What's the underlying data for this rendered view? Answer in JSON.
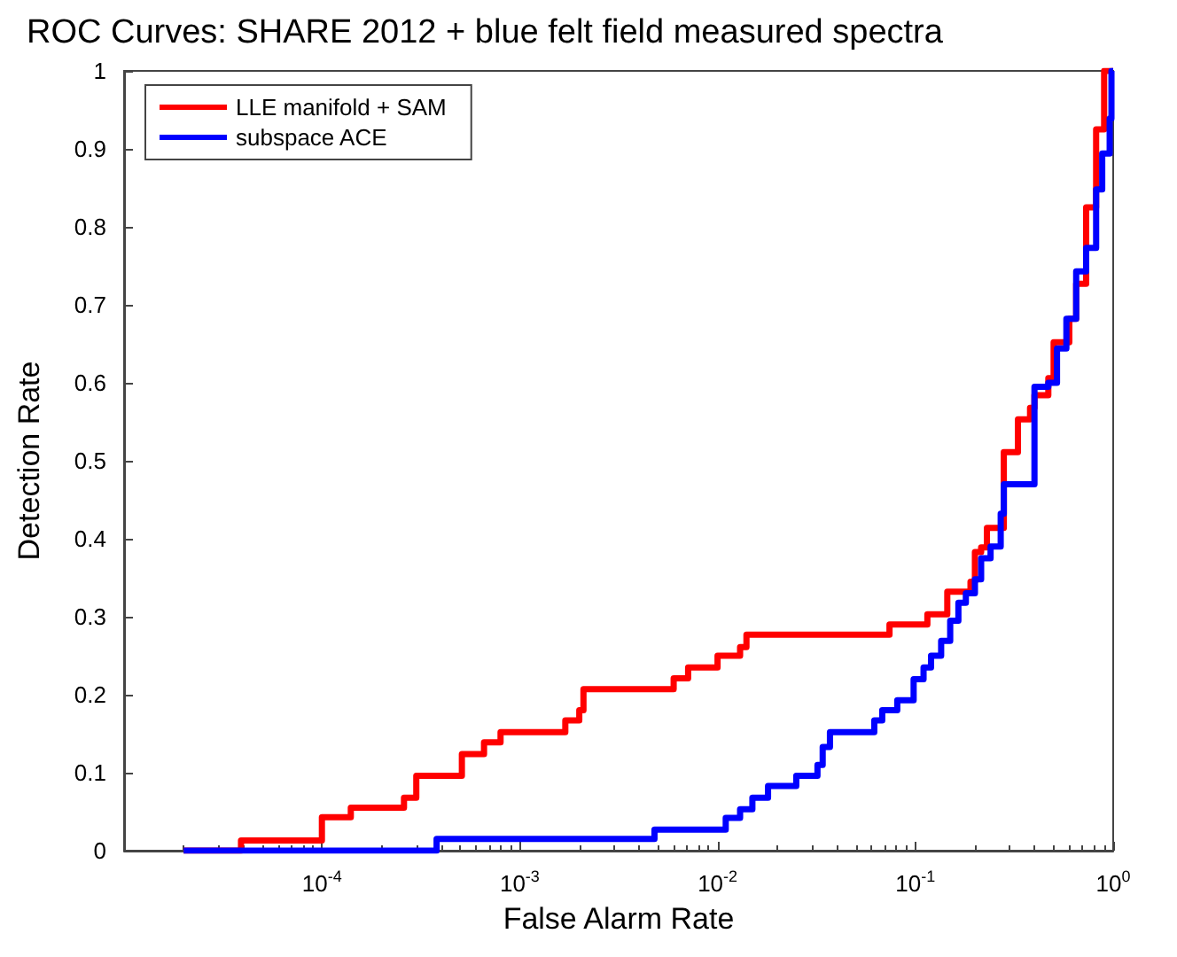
{
  "chart_data": {
    "type": "step",
    "title": "ROC Curves: SHARE 2012 + blue felt field measured spectra",
    "xlabel": "False Alarm Rate",
    "ylabel": "Detection Rate",
    "log": "x",
    "xlim": [
      1e-05,
      1
    ],
    "xticks": [
      {
        "value": 0.0001,
        "label": "10$^{-4}$"
      },
      {
        "value": 0.001,
        "label": "10$^{-3}$"
      },
      {
        "value": 0.01,
        "label": "10$^{-2}$"
      },
      {
        "value": 0.1,
        "label": "10$^{-1}$"
      },
      {
        "value": 1,
        "label": "10$^{0}$"
      }
    ],
    "ylim": [
      0,
      1
    ],
    "yticks": [
      0,
      0.1,
      0.2,
      0.3,
      0.4,
      0.5,
      0.6,
      0.7,
      0.8,
      0.9,
      1
    ],
    "grid": false,
    "legend": "top left",
    "line_style": "solid",
    "marker": "none",
    "series": [
      {
        "name": "LLE manifold + SAM",
        "color": "#ff0000",
        "x": [
          2e-05,
          3.9e-05,
          0.0001,
          0.00014,
          0.00026,
          0.0003,
          0.00051,
          0.00066,
          0.0008,
          0.0017,
          0.002,
          0.0021,
          0.006,
          0.0071,
          0.01,
          0.013,
          0.014,
          0.074,
          0.115,
          0.145,
          0.19,
          0.2,
          0.215,
          0.23,
          0.28,
          0.33,
          0.38,
          0.4,
          0.47,
          0.5,
          0.6,
          0.65,
          0.73,
          0.82,
          0.9,
          1
        ],
        "values": [
          0,
          0.013,
          0.043,
          0.055,
          0.068,
          0.096,
          0.124,
          0.139,
          0.152,
          0.167,
          0.18,
          0.207,
          0.221,
          0.235,
          0.25,
          0.261,
          0.277,
          0.29,
          0.303,
          0.332,
          0.345,
          0.383,
          0.389,
          0.414,
          0.511,
          0.553,
          0.568,
          0.584,
          0.606,
          0.652,
          0.682,
          0.727,
          0.825,
          0.925,
          1,
          1
        ]
      },
      {
        "name": "subspace ACE",
        "color": "#0000ff",
        "x": [
          2e-05,
          0.00038,
          0.0048,
          0.011,
          0.013,
          0.015,
          0.018,
          0.025,
          0.032,
          0.034,
          0.037,
          0.062,
          0.068,
          0.081,
          0.098,
          0.11,
          0.12,
          0.135,
          0.15,
          0.165,
          0.18,
          0.2,
          0.215,
          0.24,
          0.27,
          0.28,
          0.4,
          0.47,
          0.52,
          0.58,
          0.65,
          0.73,
          0.82,
          0.88,
          0.96,
          0.98,
          1
        ],
        "values": [
          0,
          0.015,
          0.027,
          0.042,
          0.053,
          0.068,
          0.083,
          0.096,
          0.11,
          0.133,
          0.152,
          0.167,
          0.18,
          0.193,
          0.22,
          0.235,
          0.25,
          0.269,
          0.295,
          0.318,
          0.33,
          0.348,
          0.375,
          0.39,
          0.432,
          0.47,
          0.595,
          0.6,
          0.644,
          0.682,
          0.743,
          0.773,
          0.848,
          0.894,
          0.939,
          1,
          1
        ]
      }
    ]
  }
}
